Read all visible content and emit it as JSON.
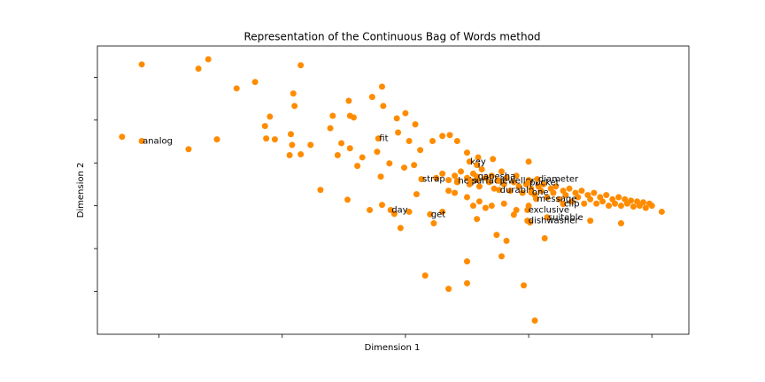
{
  "chart_data": {
    "type": "scatter",
    "title": "Representation of the Continuous Bag of Words method",
    "x_label": "Dimension 1",
    "y_label": "Dimension 2",
    "xlim": [
      -2.5,
      2.3
    ],
    "ylim": [
      -3.0,
      3.73
    ],
    "xticks": [
      -2,
      -1,
      0,
      1,
      2
    ],
    "yticks": [
      -2,
      -1,
      0,
      1,
      2,
      3
    ],
    "color": "#ff8c00",
    "series": [
      {
        "x": [
          -2.14,
          -1.6,
          -1.68,
          -0.85,
          -1.37,
          -1.22,
          -2.3,
          -1.76,
          -1.53,
          -0.91,
          -0.9,
          -1.1,
          -1.14,
          -1.06,
          -1.13,
          -0.93,
          -0.92,
          -0.85,
          -0.94,
          -0.77,
          -0.69,
          -0.59,
          -0.61,
          -0.52,
          -0.55,
          -0.46,
          -0.45,
          -0.42,
          -0.27,
          -0.19,
          -0.18,
          -0.07,
          0,
          0.08,
          -0.45,
          -0.39,
          -0.35,
          -0.23,
          -0.47,
          -0.29,
          -0.2,
          -0.19,
          -0.09,
          -0.04,
          0.03,
          0.09,
          0.16,
          0.35,
          0.5,
          0.5,
          0.78,
          0.96,
          1.05,
          0.74,
          0.82,
          1.13,
          0.23,
          0.3,
          0.58,
          0.88,
          1.01,
          2.08,
          1.75,
          1.5,
          -0.06,
          0.03,
          0.12,
          0.22,
          0.3,
          0.36,
          0.42,
          0.5,
          0.59,
          0.71,
          1.0,
          -0.13,
          -0.01,
          0.07,
          0.25,
          0.3,
          0.35,
          0.4,
          0.42,
          0.45,
          0.5,
          0.52,
          0.55,
          0.58,
          0.6,
          0.62,
          0.65,
          0.68,
          0.7,
          0.72,
          0.75,
          0.78,
          0.8,
          0.82,
          0.85,
          0.88,
          0.9,
          0.92,
          0.95,
          0.98,
          1.0,
          1.02,
          1.05,
          1.08,
          1.1,
          1.12,
          1.15,
          1.18,
          1.2,
          1.22,
          1.25,
          1.28,
          1.3,
          1.33,
          1.35,
          1.38,
          1.4,
          1.43,
          1.45,
          1.48,
          1.5,
          1.53,
          1.55,
          1.58,
          1.6,
          1.63,
          1.65,
          1.68,
          1.7,
          1.73,
          1.75,
          1.78,
          1.8,
          1.83,
          1.85,
          1.88,
          1.9,
          1.93,
          1.95,
          1.98,
          2.0,
          0.4,
          0.5,
          0.6,
          0.7,
          0.8,
          0.9,
          1.0,
          0.35,
          0.55,
          0.65
        ],
        "y": [
          3.3,
          3.42,
          3.2,
          3.28,
          2.74,
          2.89,
          1.61,
          1.32,
          1.55,
          2.62,
          2.33,
          2.08,
          1.86,
          1.55,
          1.57,
          1.67,
          1.42,
          1.2,
          1.18,
          1.42,
          0.37,
          2.1,
          1.81,
          1.46,
          1.18,
          2.45,
          2.1,
          2.06,
          2.54,
          2.78,
          2.33,
          2.04,
          2.16,
          1.9,
          1.34,
          0.93,
          1.13,
          1.26,
          0.14,
          -0.1,
          0.68,
          0.02,
          -0.19,
          -0.52,
          -0.14,
          0.27,
          -1.63,
          -1.94,
          -1.81,
          -1.3,
          -1.18,
          -1.86,
          -2.68,
          -0.68,
          -0.82,
          -0.76,
          -0.41,
          -0.14,
          -0.31,
          -0.21,
          -0.39,
          -0.14,
          -0.41,
          -0.35,
          1.71,
          1.51,
          1.3,
          1.51,
          1.63,
          1.65,
          1.51,
          1.24,
          1.13,
          1.09,
          1.03,
          0.99,
          0.89,
          0.95,
          0.65,
          0.75,
          0.6,
          0.7,
          0.55,
          0.8,
          0.65,
          0.5,
          0.75,
          0.6,
          0.45,
          0.85,
          0.65,
          0.55,
          0.7,
          0.4,
          0.6,
          0.8,
          0.5,
          0.65,
          0.35,
          0.55,
          0.7,
          0.45,
          0.3,
          0.5,
          0.6,
          0.4,
          0.25,
          0.45,
          0.35,
          0.5,
          0.2,
          0.4,
          0.3,
          0.45,
          0.15,
          0.35,
          0.25,
          0.4,
          0.1,
          0.3,
          0.2,
          0.35,
          0.05,
          0.25,
          0.15,
          0.3,
          0.05,
          0.2,
          0.1,
          0.25,
          0.0,
          0.15,
          0.05,
          0.2,
          0.0,
          0.15,
          0.05,
          0.12,
          -0.02,
          0.1,
          0.0,
          0.08,
          -0.05,
          0.05,
          0.0,
          0.3,
          0.2,
          0.1,
          0.0,
          0.05,
          -0.1,
          0.0,
          0.35,
          0.0,
          -0.05
        ]
      }
    ],
    "annotations": [
      {
        "text": "analog",
        "x": -2.14,
        "y": 1.51
      },
      {
        "text": "fit",
        "x": -0.22,
        "y": 1.57
      },
      {
        "text": "key",
        "x": 0.52,
        "y": 1.03
      },
      {
        "text": "i",
        "x": 0.58,
        "y": 0.95
      },
      {
        "text": "ganesha",
        "x": 0.58,
        "y": 0.68
      },
      {
        "text": "strap",
        "x": 0.13,
        "y": 0.62
      },
      {
        "text": "help",
        "x": 0.42,
        "y": 0.58
      },
      {
        "text": "surface",
        "x": 0.53,
        "y": 0.58
      },
      {
        "text": "jewellery",
        "x": 0.76,
        "y": 0.58
      },
      {
        "text": "pocket",
        "x": 1.0,
        "y": 0.54
      },
      {
        "text": "diameter",
        "x": 1.07,
        "y": 0.62
      },
      {
        "text": "durable",
        "x": 0.76,
        "y": 0.37
      },
      {
        "text": "one",
        "x": 1.02,
        "y": 0.31
      },
      {
        "text": "message",
        "x": 1.06,
        "y": 0.16
      },
      {
        "text": "clip",
        "x": 1.28,
        "y": 0.04
      },
      {
        "text": "exclusive",
        "x": 0.99,
        "y": -0.1
      },
      {
        "text": "day",
        "x": -0.12,
        "y": -0.1
      },
      {
        "text": "get",
        "x": 0.2,
        "y": -0.2
      },
      {
        "text": "suitable",
        "x": 1.15,
        "y": -0.27
      },
      {
        "text": "dishwasher",
        "x": 0.99,
        "y": -0.35
      }
    ]
  }
}
